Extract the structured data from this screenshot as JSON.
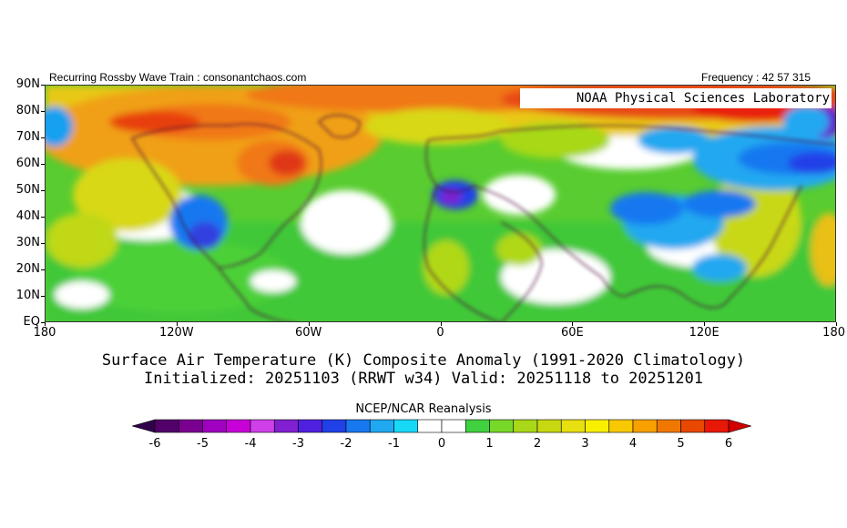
{
  "header": {
    "left_text": "Recurring Rossby Wave Train : consonantchaos.com",
    "right_text": "Frequency : 42 57 315"
  },
  "map": {
    "lab_label": "NOAA Physical Sciences Laboratory",
    "lat_labels": [
      "90N",
      "80N",
      "70N",
      "60N",
      "50N",
      "40N",
      "30N",
      "20N",
      "10N",
      "EQ"
    ],
    "lon_labels": [
      "180",
      "120W",
      "60W",
      "0",
      "60E",
      "120E",
      "180"
    ]
  },
  "title": {
    "line1": "Surface Air Temperature (K) Composite Anomaly (1991-2020 Climatology)",
    "line2": "Initialized: 20251103 (RRWT w34) Valid: 20251118 to 20251201"
  },
  "source": "NCEP/NCAR Reanalysis",
  "colorbar": {
    "labels": [
      "-6",
      "-5",
      "-4",
      "-3",
      "-2",
      "-1",
      "0",
      "1",
      "2",
      "3",
      "4",
      "5",
      "6"
    ],
    "colors": [
      "#52006a",
      "#7a0090",
      "#a000c0",
      "#c800d8",
      "#d040e8",
      "#8020d0",
      "#5020e0",
      "#2040e8",
      "#1878f0",
      "#20a8f0",
      "#18d8f8",
      "#ffffff",
      "#ffffff",
      "#40d040",
      "#78d828",
      "#a8d818",
      "#c8d810",
      "#e8e010",
      "#f8f000",
      "#f8c800",
      "#f8a000",
      "#f07800",
      "#e84800",
      "#e81808"
    ],
    "end_left_color": "#30004a",
    "end_right_color": "#d00000"
  }
}
